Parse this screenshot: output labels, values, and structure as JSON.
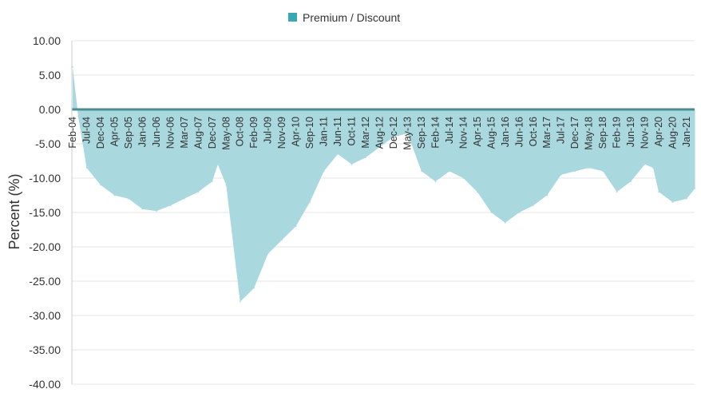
{
  "chart_data": {
    "type": "area",
    "ylabel": "Percent (%)",
    "ylim": [
      -40,
      10
    ],
    "y_ticks": [
      "10.00",
      "5.00",
      "0.00",
      "-5.00",
      "-10.00",
      "-15.00",
      "-20.00",
      "-25.00",
      "-30.00",
      "-35.00",
      "-40.00"
    ],
    "x_ticks": [
      "Feb-04",
      "Jul-04",
      "Dec-04",
      "Apr-05",
      "Sep-05",
      "Jan-06",
      "Jun-06",
      "Nov-06",
      "Mar-07",
      "Aug-07",
      "Dec-07",
      "May-08",
      "Oct-08",
      "Feb-09",
      "Jul-09",
      "Nov-09",
      "Apr-10",
      "Sep-10",
      "Jan-11",
      "Jun-11",
      "Oct-11",
      "Mar-12",
      "Aug-12",
      "Dec-12",
      "May-13",
      "Sep-13",
      "Feb-14",
      "Jul-14",
      "Nov-14",
      "Apr-15",
      "Aug-15",
      "Jan-16",
      "Jun-16",
      "Oct-16",
      "Mar-17",
      "Jul-17",
      "Dec-17",
      "May-18",
      "Sep-18",
      "Feb-19",
      "Jun-19",
      "Nov-19",
      "Apr-20",
      "Aug-20",
      "Jan-21"
    ],
    "grid": true,
    "legend_position": "top-center",
    "series": [
      {
        "name": "Premium / Discount",
        "color": "#3aa8b2",
        "fill_color": "#a9d8de",
        "points": [
          [
            "Feb-04",
            6.2
          ],
          [
            "Apr-04",
            -1.0
          ],
          [
            "Jul-04",
            -8.5
          ],
          [
            "Dec-04",
            -11.0
          ],
          [
            "Apr-05",
            -12.5
          ],
          [
            "Sep-05",
            -13.0
          ],
          [
            "Jan-06",
            -14.5
          ],
          [
            "Jun-06",
            -14.8
          ],
          [
            "Nov-06",
            -14.0
          ],
          [
            "Mar-07",
            -13.0
          ],
          [
            "Aug-07",
            -12.0
          ],
          [
            "Dec-07",
            -10.5
          ],
          [
            "Feb-08",
            -8.0
          ],
          [
            "May-08",
            -11.0
          ],
          [
            "Oct-08",
            -28.0
          ],
          [
            "Feb-09",
            -26.0
          ],
          [
            "Jul-09",
            -21.0
          ],
          [
            "Nov-09",
            -19.0
          ],
          [
            "Apr-10",
            -17.0
          ],
          [
            "Sep-10",
            -13.5
          ],
          [
            "Jan-11",
            -9.0
          ],
          [
            "Jun-11",
            -6.5
          ],
          [
            "Oct-11",
            -8.0
          ],
          [
            "Mar-12",
            -7.0
          ],
          [
            "Aug-12",
            -5.5
          ],
          [
            "Dec-12",
            -4.0
          ],
          [
            "May-13",
            -3.5
          ],
          [
            "Sep-13",
            -9.0
          ],
          [
            "Feb-14",
            -10.5
          ],
          [
            "Jul-14",
            -9.0
          ],
          [
            "Nov-14",
            -10.0
          ],
          [
            "Apr-15",
            -12.0
          ],
          [
            "Aug-15",
            -15.0
          ],
          [
            "Jan-16",
            -16.5
          ],
          [
            "Jun-16",
            -15.0
          ],
          [
            "Oct-16",
            -14.0
          ],
          [
            "Mar-17",
            -12.5
          ],
          [
            "Jul-17",
            -9.5
          ],
          [
            "Dec-17",
            -9.0
          ],
          [
            "May-18",
            -8.5
          ],
          [
            "Sep-18",
            -9.0
          ],
          [
            "Feb-19",
            -12.0
          ],
          [
            "Jun-19",
            -10.5
          ],
          [
            "Nov-19",
            -8.0
          ],
          [
            "Feb-20",
            -8.5
          ],
          [
            "Apr-20",
            -12.0
          ],
          [
            "Aug-20",
            -13.5
          ],
          [
            "Jan-21",
            -13.0
          ],
          [
            "Apr-21",
            -11.5
          ]
        ]
      }
    ]
  }
}
